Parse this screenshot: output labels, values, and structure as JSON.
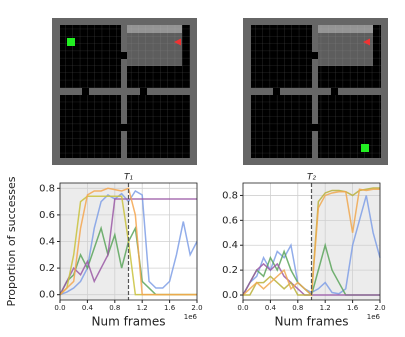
{
  "chart_data": [
    {
      "type": "line",
      "title": "T₁",
      "ylabel": "Proportion of successes",
      "xlabel": "Num frames",
      "x_offset_text": "1e6",
      "x": [
        0,
        0.1,
        0.2,
        0.3,
        0.4,
        0.5,
        0.6,
        0.7,
        0.8,
        0.9,
        1.0,
        1.1,
        1.2,
        1.3,
        1.4,
        1.5,
        1.6,
        1.7,
        1.8,
        1.9,
        2.0
      ],
      "xlim": [
        0,
        2.0
      ],
      "ylim": [
        -0.04,
        0.84
      ],
      "xticks": [
        {
          "value": 0,
          "label": "0.0"
        },
        0.4,
        0.8,
        1.2,
        1.6,
        {
          "value": 2.0,
          "label": "2.0"
        }
      ],
      "yticks": [
        {
          "value": 0,
          "label": "0.0"
        },
        0.2,
        0.4,
        0.6,
        0.8
      ],
      "grid": true,
      "shaded": [
        0,
        1.0
      ],
      "vline": 1.0,
      "series": [
        {
          "color": "#7f9fe6",
          "values": [
            0,
            0.02,
            0.05,
            0.1,
            0.2,
            0.5,
            0.7,
            0.75,
            0.72,
            0.76,
            0.7,
            0.78,
            0.75,
            0.1,
            0.05,
            0.05,
            0.1,
            0.3,
            0.55,
            0.3,
            0.4
          ]
        },
        {
          "color": "#5aa55a",
          "values": [
            0,
            0.1,
            0.15,
            0.3,
            0.2,
            0.35,
            0.5,
            0.3,
            0.45,
            0.2,
            0.4,
            0.5,
            0.1,
            0.05,
            0,
            0,
            0,
            0,
            0,
            0,
            0
          ]
        },
        {
          "color": "#9b59a6",
          "values": [
            0,
            0.1,
            0.2,
            0.15,
            0.25,
            0.1,
            0.2,
            0.3,
            0.72,
            0.72,
            0.72,
            0.72,
            0.72,
            0.72,
            0.72,
            0.72,
            0.72,
            0.72,
            0.72,
            0.72,
            0.72
          ]
        },
        {
          "color": "#c9c23c",
          "values": [
            0,
            0.05,
            0.3,
            0.7,
            0.74,
            0.74,
            0.74,
            0.74,
            0.74,
            0.74,
            0.4,
            0,
            0,
            0,
            0,
            0,
            0,
            0,
            0,
            0,
            0
          ]
        },
        {
          "color": "#f5a64f",
          "values": [
            0,
            0.05,
            0.1,
            0.5,
            0.75,
            0.78,
            0.78,
            0.8,
            0.79,
            0.78,
            0.8,
            0.6,
            0,
            0,
            0,
            0,
            0,
            0,
            0,
            0,
            0
          ]
        }
      ]
    },
    {
      "type": "line",
      "title": "T₂",
      "xlabel": "Num frames",
      "x_offset_text": "1e6",
      "x": [
        0,
        0.1,
        0.2,
        0.3,
        0.4,
        0.5,
        0.6,
        0.7,
        0.8,
        0.9,
        1.0,
        1.1,
        1.2,
        1.3,
        1.4,
        1.5,
        1.6,
        1.7,
        1.8,
        1.9,
        2.0
      ],
      "xlim": [
        0,
        2.0
      ],
      "ylim": [
        -0.04,
        0.9
      ],
      "xticks": [
        {
          "value": 0,
          "label": "0.0"
        },
        0.4,
        0.8,
        1.2,
        1.6,
        {
          "value": 2.0,
          "label": "2.0"
        }
      ],
      "yticks": [
        {
          "value": 0,
          "label": "0.0"
        },
        0.2,
        0.4,
        0.6,
        0.8
      ],
      "grid": true,
      "shaded": [
        1.0,
        2.0
      ],
      "vline": 1.0,
      "series": [
        {
          "color": "#7f9fe6",
          "values": [
            0,
            0.1,
            0.15,
            0.3,
            0.2,
            0.35,
            0.3,
            0.4,
            0.1,
            0.05,
            0.02,
            0.05,
            0.1,
            0.02,
            0.01,
            0.05,
            0.4,
            0.6,
            0.8,
            0.5,
            0.3
          ]
        },
        {
          "color": "#5aa55a",
          "values": [
            0,
            0.1,
            0.2,
            0.15,
            0.3,
            0.2,
            0.35,
            0.2,
            0.1,
            0.05,
            0,
            0.2,
            0.4,
            0.2,
            0.1,
            0,
            0,
            0,
            0,
            0,
            0
          ]
        },
        {
          "color": "#9b59a6",
          "values": [
            0,
            0.1,
            0.2,
            0.25,
            0.2,
            0.25,
            0.15,
            0.1,
            0.05,
            0,
            0,
            0,
            0,
            0,
            0,
            0,
            0,
            0,
            0,
            0,
            0
          ]
        },
        {
          "color": "#b8b03a",
          "values": [
            0,
            0,
            0.1,
            0.1,
            0.15,
            0.1,
            0.05,
            0.1,
            0,
            0,
            0,
            0.75,
            0.82,
            0.84,
            0.84,
            0.83,
            0.8,
            0.84,
            0.85,
            0.86,
            0.86
          ]
        },
        {
          "color": "#f0a850",
          "values": [
            0,
            0.05,
            0.1,
            0.05,
            0.1,
            0.15,
            0.2,
            0.05,
            0.1,
            0.05,
            0,
            0.7,
            0.8,
            0.82,
            0.83,
            0.83,
            0.5,
            0.85,
            0.84,
            0.85,
            0.85
          ]
        }
      ]
    }
  ]
}
